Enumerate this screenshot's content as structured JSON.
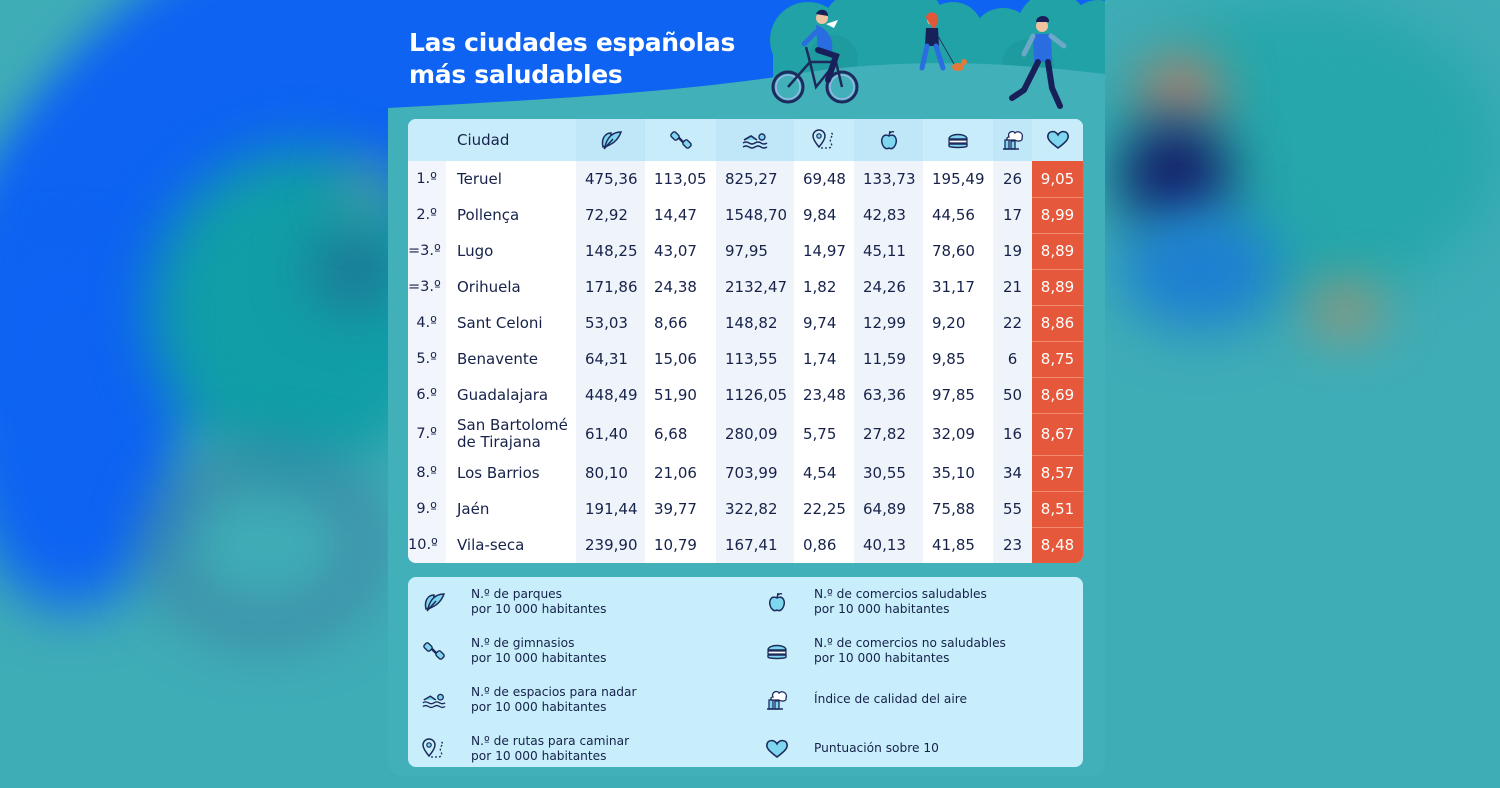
{
  "title": {
    "line1": "Las ciudades españolas",
    "line2": "más saludables"
  },
  "colors": {
    "hero_blue": "#0e63f2",
    "teal": "#42b0b8",
    "score_orange": "#e5583b",
    "header_row": "#c9ecfb",
    "legend_bg": "#c8eefb",
    "text_navy": "#16224a"
  },
  "table": {
    "columns": [
      {
        "key": "rank",
        "label": ""
      },
      {
        "key": "city",
        "label": "Ciudad"
      },
      {
        "key": "parks",
        "icon": "leaf-icon"
      },
      {
        "key": "gyms",
        "icon": "dumbbell-icon"
      },
      {
        "key": "swim",
        "icon": "swimmer-icon"
      },
      {
        "key": "routes",
        "icon": "map-pin-route-icon"
      },
      {
        "key": "healthy_shops",
        "icon": "apple-icon"
      },
      {
        "key": "unhealthy_shops",
        "icon": "burger-icon"
      },
      {
        "key": "air",
        "icon": "factory-smoke-icon"
      },
      {
        "key": "score",
        "icon": "heart-icon"
      }
    ],
    "rows": [
      {
        "rank": "1.º",
        "city": "Teruel",
        "parks": "475,36",
        "gyms": "113,05",
        "swim": "825,27",
        "routes": "69,48",
        "healthy_shops": "133,73",
        "unhealthy_shops": "195,49",
        "air": "26",
        "score": "9,05"
      },
      {
        "rank": "2.º",
        "city": "Pollença",
        "parks": "72,92",
        "gyms": "14,47",
        "swim": "1548,70",
        "routes": "9,84",
        "healthy_shops": "42,83",
        "unhealthy_shops": "44,56",
        "air": "17",
        "score": "8,99"
      },
      {
        "rank": "=3.º",
        "city": "Lugo",
        "parks": "148,25",
        "gyms": "43,07",
        "swim": "97,95",
        "routes": "14,97",
        "healthy_shops": "45,11",
        "unhealthy_shops": "78,60",
        "air": "19",
        "score": "8,89"
      },
      {
        "rank": "=3.º",
        "city": "Orihuela",
        "parks": "171,86",
        "gyms": "24,38",
        "swim": "2132,47",
        "routes": "1,82",
        "healthy_shops": "24,26",
        "unhealthy_shops": "31,17",
        "air": "21",
        "score": "8,89"
      },
      {
        "rank": "4.º",
        "city": "Sant Celoni",
        "parks": "53,03",
        "gyms": "8,66",
        "swim": "148,82",
        "routes": "9,74",
        "healthy_shops": "12,99",
        "unhealthy_shops": "9,20",
        "air": "22",
        "score": "8,86"
      },
      {
        "rank": "5.º",
        "city": "Benavente",
        "parks": "64,31",
        "gyms": "15,06",
        "swim": "113,55",
        "routes": "1,74",
        "healthy_shops": "11,59",
        "unhealthy_shops": "9,85",
        "air": "6",
        "score": "8,75"
      },
      {
        "rank": "6.º",
        "city": "Guadalajara",
        "parks": "448,49",
        "gyms": "51,90",
        "swim": "1126,05",
        "routes": "23,48",
        "healthy_shops": "63,36",
        "unhealthy_shops": "97,85",
        "air": "50",
        "score": "8,69"
      },
      {
        "rank": "7.º",
        "city": "San Bartolomé de Tirajana",
        "parks": "61,40",
        "gyms": "6,68",
        "swim": "280,09",
        "routes": "5,75",
        "healthy_shops": "27,82",
        "unhealthy_shops": "32,09",
        "air": "16",
        "score": "8,67"
      },
      {
        "rank": "8.º",
        "city": "Los Barrios",
        "parks": "80,10",
        "gyms": "21,06",
        "swim": "703,99",
        "routes": "4,54",
        "healthy_shops": "30,55",
        "unhealthy_shops": "35,10",
        "air": "34",
        "score": "8,57"
      },
      {
        "rank": "9.º",
        "city": "Jaén",
        "parks": "191,44",
        "gyms": "39,77",
        "swim": "322,82",
        "routes": "22,25",
        "healthy_shops": "64,89",
        "unhealthy_shops": "75,88",
        "air": "55",
        "score": "8,51"
      },
      {
        "rank": "10.º",
        "city": "Vila-seca",
        "parks": "239,90",
        "gyms": "10,79",
        "swim": "167,41",
        "routes": "0,86",
        "healthy_shops": "40,13",
        "unhealthy_shops": "41,85",
        "air": "23",
        "score": "8,48"
      }
    ]
  },
  "legend": {
    "items": [
      {
        "icon": "leaf-icon",
        "line1": "N.º de parques",
        "line2": "por 10 000 habitantes"
      },
      {
        "icon": "dumbbell-icon",
        "line1": "N.º de gimnasios",
        "line2": "por 10 000 habitantes"
      },
      {
        "icon": "swimmer-icon",
        "line1": "N.º de espacios para nadar",
        "line2": "por 10 000 habitantes"
      },
      {
        "icon": "map-pin-route-icon",
        "line1": "N.º de rutas para caminar",
        "line2": "por 10 000 habitantes"
      },
      {
        "icon": "apple-icon",
        "line1": "N.º de comercios saludables",
        "line2": "por 10 000 habitantes"
      },
      {
        "icon": "burger-icon",
        "line1": "N.º de comercios no saludables",
        "line2": "por 10 000 habitantes"
      },
      {
        "icon": "factory-smoke-icon",
        "line1": "Índice de calidad del aire",
        "line2": ""
      },
      {
        "icon": "heart-icon",
        "line1": "Puntuación sobre 10",
        "line2": ""
      }
    ]
  }
}
